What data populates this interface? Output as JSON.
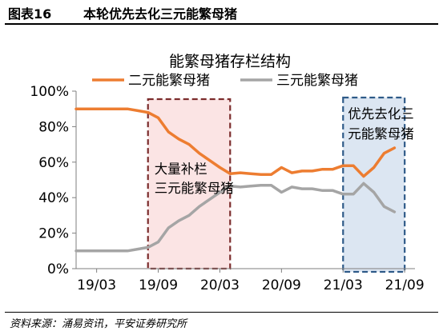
{
  "header": {
    "figure_label": "图表16",
    "title": "本轮优先去化三元能繁母猪"
  },
  "footer": {
    "source": "资料来源：涌易资讯，平安证券研究所"
  },
  "colors": {
    "series_orange": "#ED7D31",
    "series_gray": "#A5A5A5",
    "box1_border": "#7B2C2C",
    "box1_fill": "#FBE4E4",
    "box2_border": "#2E5A88",
    "box2_fill": "#DCE6F2"
  },
  "chart_data": {
    "type": "line",
    "title": "能繁母猪存栏结构",
    "y_axis": {
      "min": 0,
      "max": 100,
      "ticks": [
        "0%",
        "20%",
        "40%",
        "60%",
        "80%",
        "100%"
      ]
    },
    "x_axis": {
      "ticks": [
        "19/03",
        "19/09",
        "20/03",
        "20/09",
        "21/03",
        "21/09"
      ]
    },
    "legend_position": "top",
    "series": [
      {
        "name": "二元能繁母猪",
        "color": "#ED7D31",
        "points": [
          [
            "2019-01",
            90
          ],
          [
            "2019-02",
            90
          ],
          [
            "2019-03",
            90
          ],
          [
            "2019-04",
            90
          ],
          [
            "2019-05",
            90
          ],
          [
            "2019-06",
            90
          ],
          [
            "2019-07",
            89
          ],
          [
            "2019-08",
            88
          ],
          [
            "2019-09",
            85
          ],
          [
            "2019-10",
            77
          ],
          [
            "2019-11",
            73
          ],
          [
            "2019-12",
            70
          ],
          [
            "2020-01",
            65
          ],
          [
            "2020-02",
            61
          ],
          [
            "2020-03",
            57
          ],
          [
            "2020-04",
            53.5
          ],
          [
            "2020-05",
            54
          ],
          [
            "2020-06",
            53.5
          ],
          [
            "2020-07",
            53
          ],
          [
            "2020-08",
            53
          ],
          [
            "2020-09",
            57
          ],
          [
            "2020-10",
            54
          ],
          [
            "2020-11",
            55
          ],
          [
            "2020-12",
            55
          ],
          [
            "2021-01",
            56
          ],
          [
            "2021-02",
            56
          ],
          [
            "2021-03",
            58
          ],
          [
            "2021-04",
            58
          ],
          [
            "2021-05",
            52
          ],
          [
            "2021-06",
            57
          ],
          [
            "2021-07",
            65
          ],
          [
            "2021-08",
            68
          ]
        ]
      },
      {
        "name": "三元能繁母猪",
        "color": "#A5A5A5",
        "points": [
          [
            "2019-01",
            10
          ],
          [
            "2019-02",
            10
          ],
          [
            "2019-03",
            10
          ],
          [
            "2019-04",
            10
          ],
          [
            "2019-05",
            10
          ],
          [
            "2019-06",
            10
          ],
          [
            "2019-07",
            11
          ],
          [
            "2019-08",
            12
          ],
          [
            "2019-09",
            15
          ],
          [
            "2019-10",
            23
          ],
          [
            "2019-11",
            27
          ],
          [
            "2019-12",
            30
          ],
          [
            "2020-01",
            35
          ],
          [
            "2020-02",
            39
          ],
          [
            "2020-03",
            43
          ],
          [
            "2020-04",
            46.5
          ],
          [
            "2020-05",
            46
          ],
          [
            "2020-06",
            46.5
          ],
          [
            "2020-07",
            47
          ],
          [
            "2020-08",
            47
          ],
          [
            "2020-09",
            43
          ],
          [
            "2020-10",
            46
          ],
          [
            "2020-11",
            45
          ],
          [
            "2020-12",
            45
          ],
          [
            "2021-01",
            44
          ],
          [
            "2021-02",
            44
          ],
          [
            "2021-03",
            42
          ],
          [
            "2021-04",
            42
          ],
          [
            "2021-05",
            48
          ],
          [
            "2021-06",
            43
          ],
          [
            "2021-07",
            35
          ],
          [
            "2021-08",
            32
          ]
        ]
      }
    ],
    "annotations": [
      {
        "lines": [
          "大量补栏",
          "三元能繁母猪"
        ],
        "start": "2019-08",
        "end": "2020-04",
        "style": "dark-red dashed box, pink fill"
      },
      {
        "lines": [
          "优先去化三",
          "元能繁母猪"
        ],
        "start": "2021-03",
        "end": "2021-09",
        "style": "blue dashed box, light blue fill"
      }
    ]
  }
}
